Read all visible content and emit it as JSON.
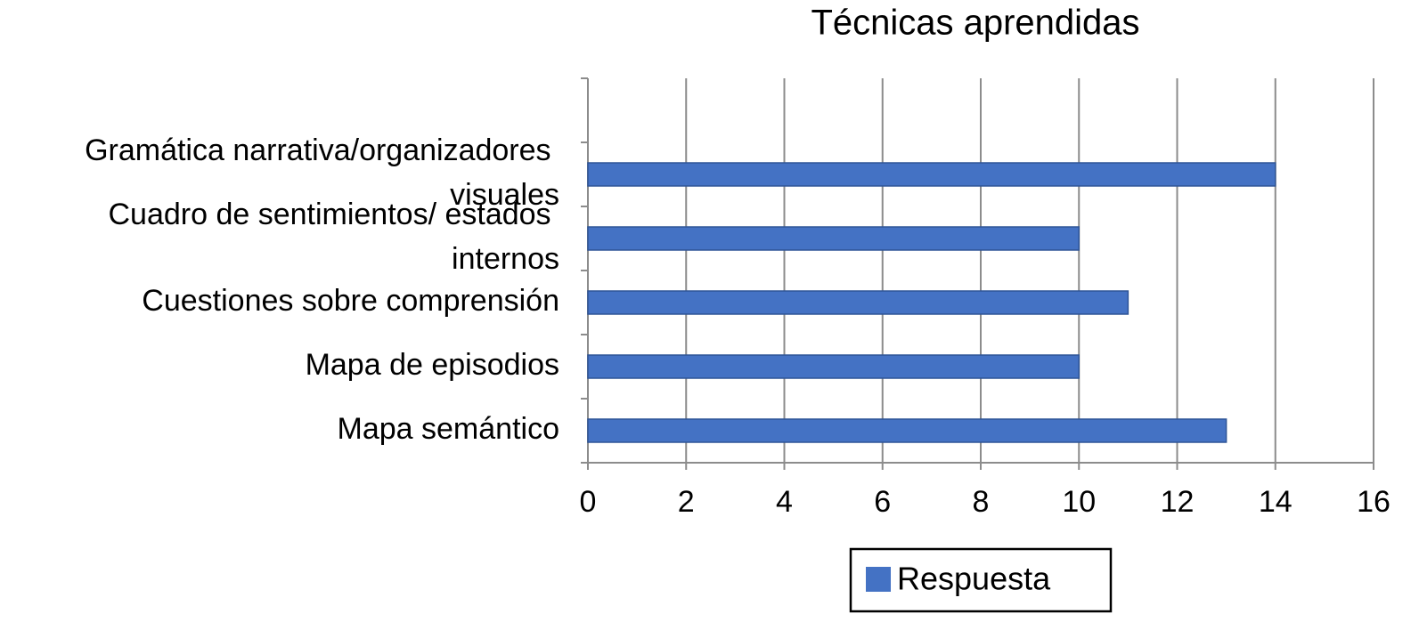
{
  "chart_data": {
    "type": "barh",
    "title": "Técnicas aprendidas",
    "categories": [
      null,
      "Gramática narrativa/organizadores visuales",
      "Cuadro de sentimientos/ estados internos",
      "Cuestiones sobre comprensión",
      "Mapa de episodios",
      "Mapa semántico"
    ],
    "series": [
      {
        "name": "Respuesta",
        "color": "#4472c4",
        "values": [
          null,
          14,
          10,
          11,
          10,
          13
        ]
      }
    ],
    "xlim": [
      0,
      16
    ],
    "xticks": [
      0,
      2,
      4,
      6,
      8,
      10,
      12,
      14,
      16
    ],
    "grid": true,
    "legend": "bottom"
  }
}
